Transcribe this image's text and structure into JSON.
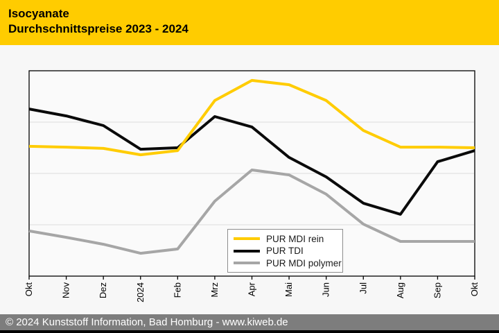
{
  "header": {
    "title_line1": "Isocyanate",
    "title_line2": "Durchschnittspreise 2023 - 2024",
    "background_color": "#FFCC00",
    "text_color": "#000000"
  },
  "chart_data": {
    "type": "line",
    "title": "Isocyanate Durchschnittspreise 2023 - 2024",
    "categories": [
      "Okt",
      "Nov",
      "Dez",
      "2024",
      "Feb",
      "Mrz",
      "Apr",
      "Mai",
      "Jun",
      "Jul",
      "Aug",
      "Sep",
      "Okt"
    ],
    "series": [
      {
        "name": "PUR MDI rein",
        "color": "#FFCC00",
        "values": [
          63.2,
          62.8,
          62.2,
          59.1,
          61.1,
          85.5,
          95.3,
          93.2,
          85.5,
          70.9,
          62.8,
          62.8,
          62.5
        ]
      },
      {
        "name": "PUR TDI",
        "color": "#0A0A0A",
        "values": [
          81.4,
          78.0,
          73.3,
          61.8,
          62.5,
          77.7,
          72.6,
          57.8,
          48.3,
          35.5,
          30.1,
          55.7,
          61.1
        ]
      },
      {
        "name": "PUR MDI polymer",
        "color": "#A6A6A6",
        "values": [
          22.0,
          18.9,
          15.5,
          11.1,
          13.2,
          36.5,
          51.7,
          49.3,
          39.9,
          25.3,
          16.9,
          16.9,
          16.9
        ]
      }
    ],
    "xlabel": "",
    "ylabel": "",
    "ylim": [
      0,
      100
    ],
    "y_gridlines": [
      25,
      50,
      75
    ],
    "y_tick_labels_visible": false,
    "grid": "horizontal",
    "legend_position": "inside-bottom-center",
    "note": "Source chart shows no y-axis scale; values are relative heights (0-100) within the plot area."
  },
  "footer": {
    "text": "© 2024 Kunststoff Information, Bad Homburg - www.kiweb.de",
    "background_color": "#7D7D7D",
    "text_color": "#FFFFFF"
  }
}
